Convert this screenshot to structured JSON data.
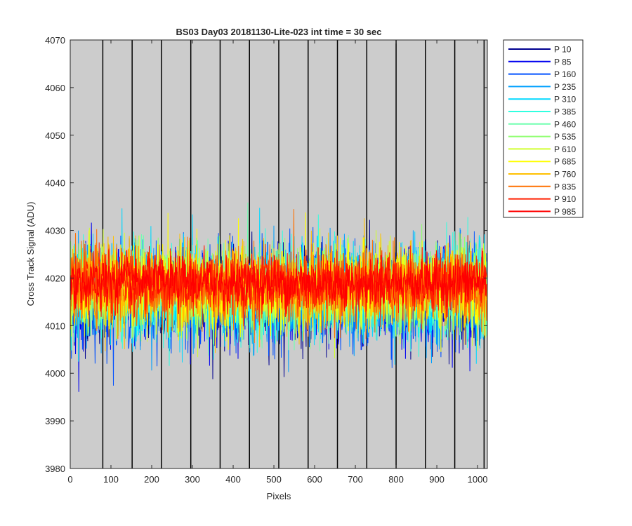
{
  "chart_data": {
    "type": "line",
    "title": "BS03 Day03 20181130-Lite-023 int time = 30 sec",
    "xlabel": "Pixels",
    "ylabel": "Cross Track Signal (ADU)",
    "xlim": [
      0,
      1024
    ],
    "ylim": [
      3980,
      4070
    ],
    "xticks": [
      0,
      100,
      200,
      300,
      400,
      500,
      600,
      700,
      800,
      900,
      1000
    ],
    "yticks": [
      3980,
      3990,
      4000,
      4010,
      4020,
      4030,
      4040,
      4050,
      4060,
      4070
    ],
    "vertical_lines_x": [
      80,
      152,
      224,
      296,
      368,
      440,
      512,
      584,
      656,
      728,
      800,
      872,
      944,
      1016
    ],
    "vertical_line_color": "#000000",
    "plot_background": "#cccccc",
    "grid": false,
    "legend_position": "outside-right-top",
    "n_points": 1024,
    "series": [
      {
        "name": "P 10",
        "color": "#00008f",
        "mean": 4016,
        "spread": 9
      },
      {
        "name": "P 85",
        "color": "#0000ef",
        "mean": 4016,
        "spread": 9
      },
      {
        "name": "P 160",
        "color": "#0050ff",
        "mean": 4016,
        "spread": 9
      },
      {
        "name": "P 235",
        "color": "#00a0ff",
        "mean": 4017,
        "spread": 9
      },
      {
        "name": "P 310",
        "color": "#00d8ff",
        "mean": 4017,
        "spread": 9
      },
      {
        "name": "P 385",
        "color": "#30ffe0",
        "mean": 4017,
        "spread": 9
      },
      {
        "name": "P 460",
        "color": "#70ffb0",
        "mean": 4017,
        "spread": 8
      },
      {
        "name": "P 535",
        "color": "#90ff70",
        "mean": 4018,
        "spread": 8
      },
      {
        "name": "P 610",
        "color": "#d0ff30",
        "mean": 4018,
        "spread": 8
      },
      {
        "name": "P 685",
        "color": "#ffff00",
        "mean": 4018,
        "spread": 8
      },
      {
        "name": "P 760",
        "color": "#ffc000",
        "mean": 4018,
        "spread": 8
      },
      {
        "name": "P 835",
        "color": "#ff7000",
        "mean": 4018,
        "spread": 7
      },
      {
        "name": "P 910",
        "color": "#ff2000",
        "mean": 4019,
        "spread": 6
      },
      {
        "name": "P 985",
        "color": "#ff0000",
        "mean": 4019,
        "spread": 5
      }
    ]
  }
}
